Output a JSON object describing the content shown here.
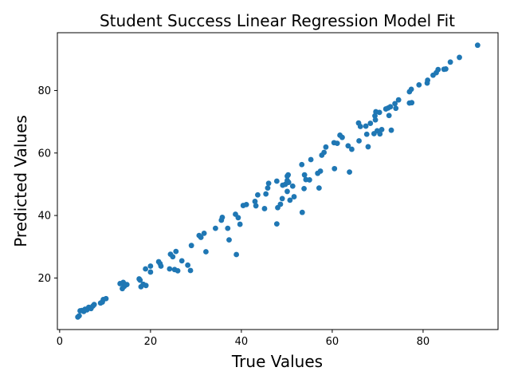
{
  "chart_data": {
    "type": "scatter",
    "title": "Student Success Linear Regression Model Fit",
    "xlabel": "True Values",
    "ylabel": "Predicted Values",
    "xlim": [
      -0.5,
      96.5
    ],
    "ylim": [
      3.5,
      98.5
    ],
    "xticks": [
      0,
      20,
      40,
      60,
      80
    ],
    "yticks": [
      20,
      40,
      60,
      80
    ],
    "grid": false,
    "marker_color": "#1f77b4",
    "points": [
      [
        4.0,
        7.5
      ],
      [
        4.3,
        7.9
      ],
      [
        4.5,
        9.5
      ],
      [
        4.9,
        9.6
      ],
      [
        5.3,
        9.3
      ],
      [
        5.6,
        10.0
      ],
      [
        6.0,
        9.8
      ],
      [
        6.4,
        10.6
      ],
      [
        6.9,
        10.2
      ],
      [
        7.3,
        11.0
      ],
      [
        7.6,
        11.5
      ],
      [
        9.0,
        12.0
      ],
      [
        9.4,
        12.3
      ],
      [
        9.6,
        13.1
      ],
      [
        10.2,
        13.4
      ],
      [
        13.3,
        18.2
      ],
      [
        13.8,
        16.6
      ],
      [
        14.0,
        18.6
      ],
      [
        14.2,
        17.3
      ],
      [
        14.5,
        17.9
      ],
      [
        14.8,
        17.9
      ],
      [
        17.5,
        19.7
      ],
      [
        17.7,
        19.3
      ],
      [
        17.9,
        17.2
      ],
      [
        18.4,
        18.0
      ],
      [
        18.9,
        22.9
      ],
      [
        19.0,
        17.6
      ],
      [
        20.0,
        23.8
      ],
      [
        20.0,
        21.9
      ],
      [
        21.8,
        25.2
      ],
      [
        22.1,
        24.6
      ],
      [
        22.3,
        23.8
      ],
      [
        24.2,
        22.9
      ],
      [
        24.4,
        27.6
      ],
      [
        24.9,
        26.8
      ],
      [
        25.3,
        22.7
      ],
      [
        25.6,
        28.5
      ],
      [
        26.0,
        22.3
      ],
      [
        26.9,
        25.5
      ],
      [
        28.2,
        24.1
      ],
      [
        28.8,
        22.4
      ],
      [
        29.0,
        30.4
      ],
      [
        30.7,
        33.6
      ],
      [
        31.1,
        33.0
      ],
      [
        31.8,
        34.3
      ],
      [
        32.2,
        28.4
      ],
      [
        34.3,
        35.9
      ],
      [
        35.6,
        38.5
      ],
      [
        35.8,
        39.4
      ],
      [
        37.0,
        35.9
      ],
      [
        37.3,
        32.2
      ],
      [
        38.7,
        40.4
      ],
      [
        38.9,
        27.5
      ],
      [
        39.3,
        39.3
      ],
      [
        39.7,
        37.2
      ],
      [
        40.4,
        43.2
      ],
      [
        41.1,
        43.5
      ],
      [
        43.0,
        44.5
      ],
      [
        43.2,
        43.1
      ],
      [
        43.6,
        46.6
      ],
      [
        45.1,
        42.2
      ],
      [
        45.4,
        46.9
      ],
      [
        45.8,
        48.8
      ],
      [
        46.0,
        50.3
      ],
      [
        47.8,
        51.0
      ],
      [
        47.8,
        37.3
      ],
      [
        48.0,
        42.5
      ],
      [
        48.6,
        43.6
      ],
      [
        49.0,
        45.4
      ],
      [
        49.1,
        49.7
      ],
      [
        49.7,
        50.0
      ],
      [
        50.1,
        47.7
      ],
      [
        50.1,
        51.2
      ],
      [
        50.1,
        52.6
      ],
      [
        50.3,
        53.0
      ],
      [
        50.4,
        50.6
      ],
      [
        50.7,
        44.9
      ],
      [
        51.3,
        49.4
      ],
      [
        51.6,
        46.0
      ],
      [
        53.3,
        56.3
      ],
      [
        53.4,
        41.0
      ],
      [
        53.8,
        48.6
      ],
      [
        53.9,
        53.0
      ],
      [
        54.2,
        51.5
      ],
      [
        55.0,
        51.4
      ],
      [
        55.3,
        57.9
      ],
      [
        56.8,
        53.5
      ],
      [
        57.1,
        48.8
      ],
      [
        57.4,
        54.2
      ],
      [
        57.7,
        59.3
      ],
      [
        58.2,
        60.2
      ],
      [
        58.6,
        61.9
      ],
      [
        60.4,
        63.3
      ],
      [
        60.5,
        55.0
      ],
      [
        61.1,
        63.1
      ],
      [
        61.7,
        65.7
      ],
      [
        62.2,
        65.0
      ],
      [
        63.5,
        62.3
      ],
      [
        63.8,
        53.9
      ],
      [
        64.3,
        61.2
      ],
      [
        65.8,
        69.6
      ],
      [
        65.9,
        63.9
      ],
      [
        66.2,
        68.5
      ],
      [
        67.4,
        68.6
      ],
      [
        67.6,
        66.0
      ],
      [
        67.9,
        62.0
      ],
      [
        68.4,
        69.5
      ],
      [
        69.2,
        66.2
      ],
      [
        69.4,
        71.9
      ],
      [
        69.5,
        70.6
      ],
      [
        69.6,
        73.2
      ],
      [
        69.9,
        67.1
      ],
      [
        70.4,
        73.0
      ],
      [
        70.5,
        66.1
      ],
      [
        70.9,
        67.5
      ],
      [
        71.8,
        74.1
      ],
      [
        72.3,
        74.4
      ],
      [
        72.5,
        72.0
      ],
      [
        72.8,
        74.8
      ],
      [
        73.0,
        67.3
      ],
      [
        73.8,
        75.8
      ],
      [
        74.0,
        74.3
      ],
      [
        74.6,
        77.0
      ],
      [
        77.0,
        76.0
      ],
      [
        77.0,
        79.6
      ],
      [
        77.4,
        80.4
      ],
      [
        77.5,
        76.1
      ],
      [
        79.1,
        81.8
      ],
      [
        80.9,
        82.4
      ],
      [
        81.0,
        83.3
      ],
      [
        82.2,
        84.9
      ],
      [
        82.9,
        85.7
      ],
      [
        83.3,
        86.7
      ],
      [
        84.6,
        86.8
      ],
      [
        85.0,
        86.9
      ],
      [
        86.0,
        89.1
      ],
      [
        88.0,
        90.6
      ],
      [
        92.0,
        94.5
      ]
    ]
  }
}
